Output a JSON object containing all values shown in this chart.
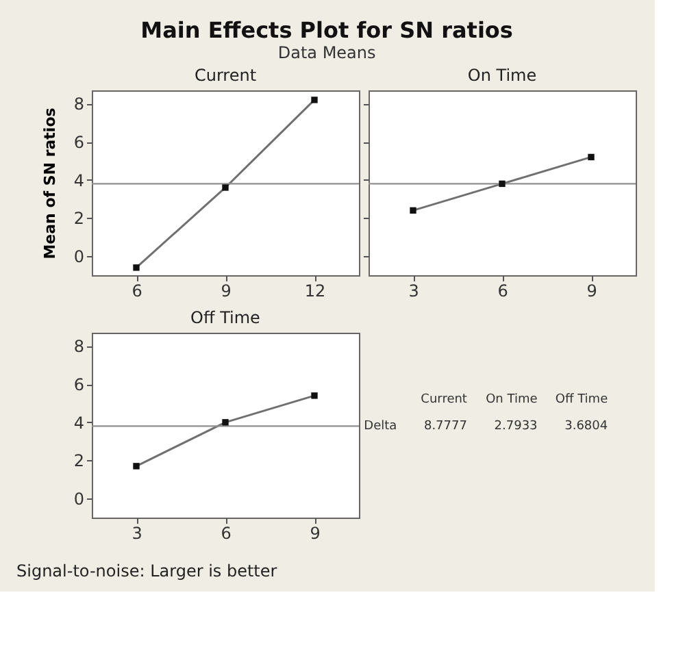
{
  "chart_data": [
    {
      "type": "line",
      "title": "Current",
      "x": [
        6,
        9,
        12
      ],
      "values": [
        -0.6,
        3.6,
        8.2
      ],
      "color": "#707070",
      "marker": "square",
      "xlim": [
        4.5,
        13.5
      ],
      "xticks": [
        6,
        9,
        12
      ],
      "ylim": [
        -1,
        8.7
      ],
      "yticks": [
        0,
        2,
        4,
        6,
        8
      ],
      "ref_lines": [
        {
          "axis": "y",
          "value": 3.8,
          "color": "#909090"
        }
      ],
      "grid": false,
      "ylabel": "Mean of SN ratios",
      "annotations": [
        "Main Effects Plot for SN ratios",
        "Data Means"
      ]
    },
    {
      "type": "line",
      "title": "On Time",
      "x": [
        3,
        6,
        9
      ],
      "values": [
        2.4,
        3.8,
        5.2
      ],
      "color": "#707070",
      "marker": "square",
      "xlim": [
        1.5,
        10.5
      ],
      "xticks": [
        3,
        6,
        9
      ],
      "ylim": [
        -1,
        8.7
      ],
      "yticks": [
        0,
        2,
        4,
        6,
        8
      ],
      "ref_lines": [
        {
          "axis": "y",
          "value": 3.8,
          "color": "#909090"
        }
      ],
      "grid": false,
      "tick_labels": "x"
    },
    {
      "type": "line",
      "title": "Off Time",
      "x": [
        3,
        6,
        9
      ],
      "values": [
        1.7,
        4.0,
        5.4
      ],
      "color": "#707070",
      "marker": "square",
      "xlim": [
        1.5,
        10.5
      ],
      "xticks": [
        3,
        6,
        9
      ],
      "ylim": [
        -1,
        8.7
      ],
      "yticks": [
        0,
        2,
        4,
        6,
        8
      ],
      "ref_lines": [
        {
          "axis": "y",
          "value": 3.8,
          "color": "#909090"
        }
      ],
      "grid": false,
      "annotations": [
        "Signal-to-noise: Larger is better"
      ]
    },
    {
      "type": "other",
      "annotations": [
        "Current",
        "On Time",
        "Off Time",
        "Delta",
        "8.7777",
        "2.7933",
        "3.6804"
      ]
    }
  ]
}
